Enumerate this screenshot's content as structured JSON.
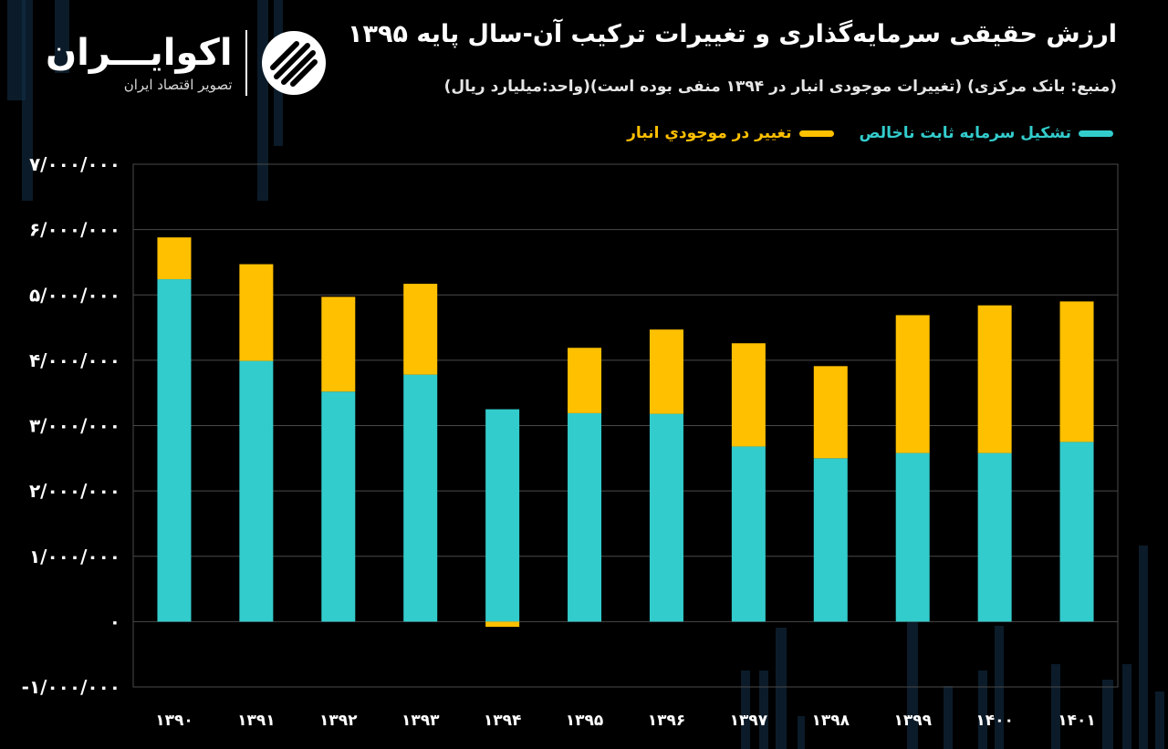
{
  "header": {
    "title": "ارزش حقیقی سرمایه‌گذاری و تغییرات ترکیب آن-سال پایه ۱۳۹۵",
    "subtitle": "(منبع: بانک مرکزی) (تغییرات موجودی انبار در ۱۳۹۴ منفی بوده است)(واحد:میلیارد ریال)"
  },
  "logo": {
    "name": "اکوایـــران",
    "tagline": "تصویر اقتصاد ایران"
  },
  "colors": {
    "background": "#000000",
    "fixed_capital": "#33cccc",
    "inventory": "#ffc000",
    "grid": "#4a4a4a"
  },
  "chart_data": {
    "type": "bar",
    "stacked": true,
    "title": "ارزش حقیقی سرمایه‌گذاری و تغییرات ترکیب آن-سال پایه ۱۳۹۵",
    "xlabel": "",
    "ylabel": "",
    "ylim": [
      -1000000,
      7000000
    ],
    "grid": true,
    "legend_position": "top-right",
    "categories": [
      "۱۳۹۰",
      "۱۳۹۱",
      "۱۳۹۲",
      "۱۳۹۳",
      "۱۳۹۴",
      "۱۳۹۵",
      "۱۳۹۶",
      "۱۳۹۷",
      "۱۳۹۸",
      "۱۳۹۹",
      "۱۴۰۰",
      "۱۴۰۱"
    ],
    "y_ticks": [
      {
        "value": 7000000,
        "label": "۷/۰۰۰/۰۰۰"
      },
      {
        "value": 6000000,
        "label": "۶/۰۰۰/۰۰۰"
      },
      {
        "value": 5000000,
        "label": "۵/۰۰۰/۰۰۰"
      },
      {
        "value": 4000000,
        "label": "۴/۰۰۰/۰۰۰"
      },
      {
        "value": 3000000,
        "label": "۳/۰۰۰/۰۰۰"
      },
      {
        "value": 2000000,
        "label": "۲/۰۰۰/۰۰۰"
      },
      {
        "value": 1000000,
        "label": "۱/۰۰۰/۰۰۰"
      },
      {
        "value": 0,
        "label": "۰"
      },
      {
        "value": -1000000,
        "label": "-۱/۰۰۰/۰۰۰"
      }
    ],
    "series": [
      {
        "name": "تشکیل سرمایه ثابت ناخالص",
        "color": "#33cccc",
        "values": [
          5240000,
          3990000,
          3520000,
          3780000,
          3250000,
          3190000,
          3180000,
          2680000,
          2500000,
          2580000,
          2580000,
          2750000
        ]
      },
      {
        "name": "تغییر در موجودي انبار",
        "color": "#ffc000",
        "values": [
          640000,
          1480000,
          1450000,
          1390000,
          -80000,
          1000000,
          1290000,
          1580000,
          1410000,
          2110000,
          2260000,
          2150000
        ]
      }
    ]
  }
}
